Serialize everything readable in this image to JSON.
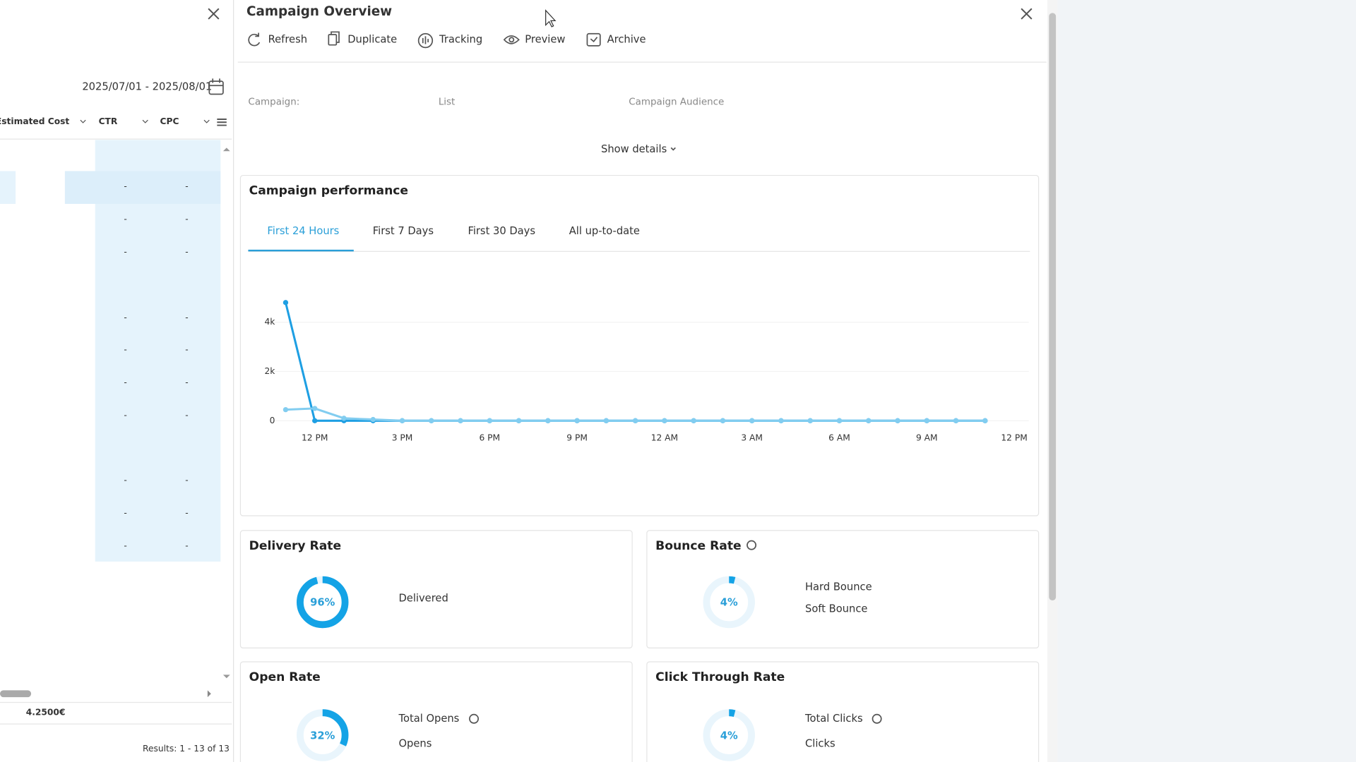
{
  "left_panel": {
    "date_range": "2025/07/01 - 2025/08/01",
    "columns": [
      "Estimated Cost",
      "CTR",
      "CPC"
    ],
    "rows": [
      [
        "-",
        "-"
      ],
      [
        "-",
        "-"
      ],
      [
        "-",
        "-"
      ],
      [
        "-",
        "-"
      ],
      [
        "-",
        "-"
      ],
      [
        "-",
        "-"
      ],
      [
        "-",
        "-"
      ],
      [
        "-",
        "-"
      ],
      [
        "-",
        "-"
      ],
      [
        "-",
        "-"
      ]
    ],
    "total": "4.2500€",
    "results": "Results: 1 - 13 of 13"
  },
  "header": {
    "title": "Campaign Overview",
    "actions": [
      "Refresh",
      "Duplicate",
      "Tracking",
      "Preview",
      "Archive"
    ]
  },
  "info": {
    "fields": [
      "Campaign:",
      "List",
      "Campaign Audience"
    ],
    "show_details": "Show details"
  },
  "performance": {
    "title": "Campaign performance",
    "tabs": [
      "First 24 Hours",
      "First 7 Days",
      "First 30 Days",
      "All up-to-date"
    ],
    "active_tab": 0
  },
  "chart_data": {
    "type": "line",
    "x": [
      -1,
      0,
      1,
      2,
      3,
      4,
      5,
      6,
      7,
      8,
      9,
      10,
      11,
      12,
      13,
      14,
      15,
      16,
      17,
      18,
      19,
      20,
      21,
      22,
      23
    ],
    "series": [
      {
        "color": "#1e9fe3",
        "values": [
          4800,
          0,
          0,
          0,
          0,
          0,
          0,
          0,
          0,
          0,
          0,
          0,
          0,
          0,
          0,
          0,
          0,
          0,
          0,
          0,
          0,
          0,
          0,
          0,
          0
        ]
      },
      {
        "color": "#82cdf0",
        "values": [
          450,
          500,
          100,
          50,
          0,
          0,
          0,
          0,
          0,
          0,
          0,
          0,
          0,
          0,
          0,
          0,
          0,
          0,
          0,
          0,
          0,
          0,
          0,
          0,
          0
        ]
      }
    ],
    "xlim": [
      -1.5,
      24.5
    ],
    "xticks": [
      {
        "value": 0,
        "label": "12 PM"
      },
      {
        "value": 3,
        "label": "3 PM"
      },
      {
        "value": 6,
        "label": "6 PM"
      },
      {
        "value": 9,
        "label": "9 PM"
      },
      {
        "value": 12,
        "label": "12 AM"
      },
      {
        "value": 15,
        "label": "3 AM"
      },
      {
        "value": 18,
        "label": "6 AM"
      },
      {
        "value": 21,
        "label": "9 AM"
      },
      {
        "value": 24,
        "label": "12 PM"
      }
    ],
    "ylim": [
      0,
      5500
    ],
    "yticks": [
      0,
      {
        "value": 2000,
        "label": "2k"
      },
      {
        "value": 4000,
        "label": "4k"
      }
    ]
  },
  "rates": [
    {
      "title": "Delivery Rate",
      "value": 96,
      "label": "96%",
      "legend": [
        "Delivered"
      ]
    },
    {
      "title": "Bounce Rate",
      "value": 4,
      "label": "4%",
      "legend": [
        "Hard Bounce",
        "Soft Bounce"
      ]
    },
    {
      "title": "Open Rate",
      "value": 32,
      "label": "32%",
      "legend": [
        "Total Opens",
        "Opens"
      ]
    },
    {
      "title": "Click Through Rate",
      "value": 4,
      "label": "4%",
      "legend": [
        "Total Clicks",
        "Clicks"
      ]
    }
  ]
}
